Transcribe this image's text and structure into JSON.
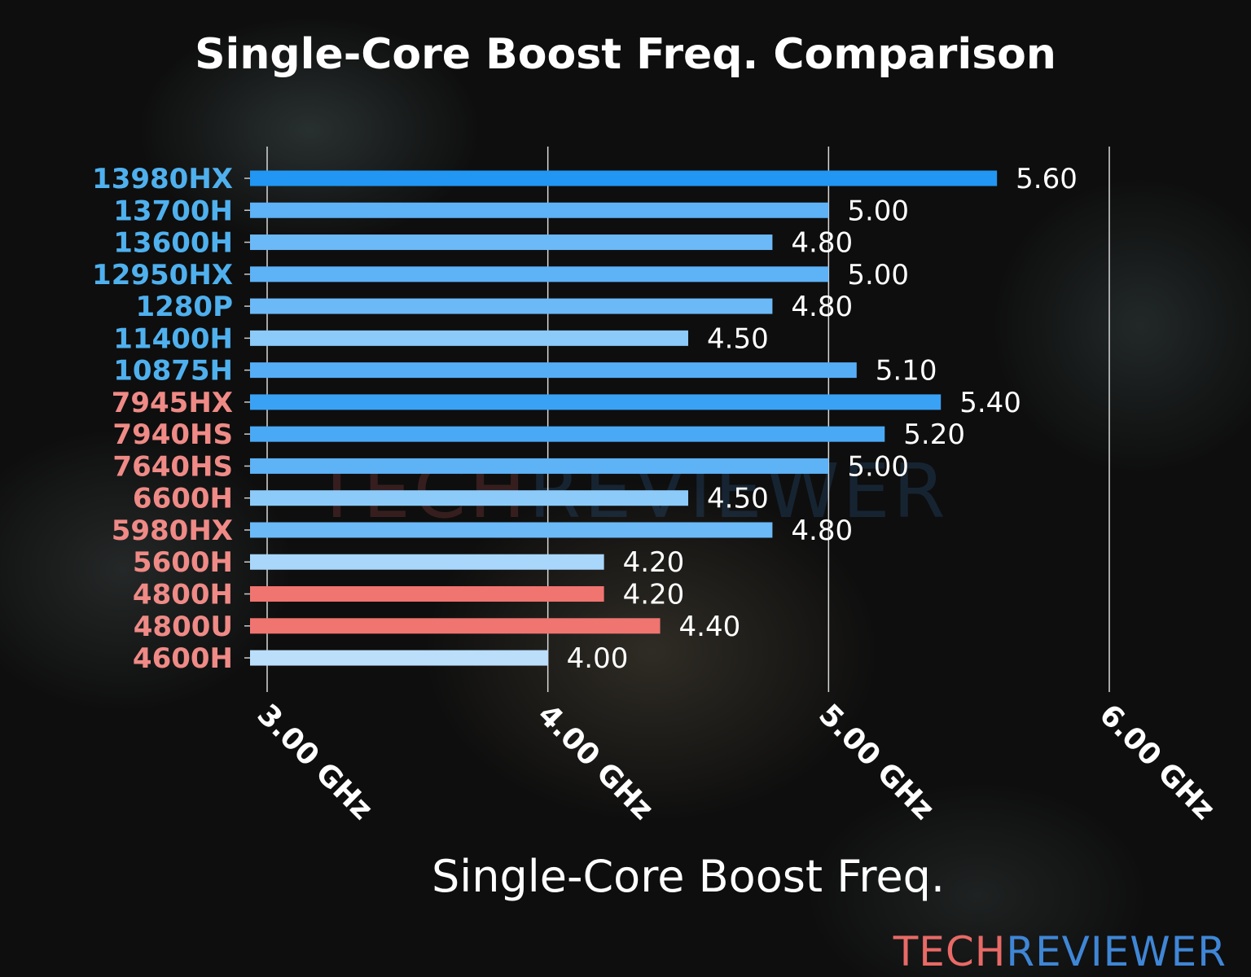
{
  "chart_data": {
    "type": "bar",
    "orientation": "horizontal",
    "title": "Single-Core Boost Freq. Comparison",
    "xlabel": "Single-Core Boost Freq.",
    "ylabel": "",
    "xlim": [
      2.94,
      6.0
    ],
    "xticks": [
      3,
      4,
      5,
      6
    ],
    "xtick_labels": [
      "3.00 GHz",
      "4.00 GHz",
      "5.00 GHz",
      "6.00 GHz"
    ],
    "grid": "vertical",
    "categories": [
      "13980HX",
      "13700H",
      "13600H",
      "12950HX",
      "1280P",
      "11400H",
      "10875H",
      "7945HX",
      "7940HS",
      "7640HS",
      "6600H",
      "5980HX",
      "5600H",
      "4800H",
      "4800U",
      "4600H"
    ],
    "values": [
      5.6,
      5.0,
      4.8,
      5.0,
      4.8,
      4.5,
      5.1,
      5.4,
      5.2,
      5.0,
      4.5,
      4.8,
      4.2,
      4.2,
      4.4,
      4.0
    ],
    "value_labels": [
      "5.60",
      "5.00",
      "4.80",
      "5.00",
      "4.80",
      "4.50",
      "5.10",
      "5.40",
      "5.20",
      "5.00",
      "4.50",
      "4.80",
      "4.20",
      "4.20",
      "4.40",
      "4.00"
    ],
    "bar_colors": [
      "#2196f3",
      "#5eb2f6",
      "#6cb9f7",
      "#5eb2f6",
      "#6cb9f7",
      "#8ccaf9",
      "#55adf5",
      "#3aa2f4",
      "#4aa9f5",
      "#5eb2f6",
      "#8ccaf9",
      "#6cb9f7",
      "#a9d7fb",
      "#f07470",
      "#f07470",
      "#bbdefb"
    ],
    "label_colors": [
      "#4fb0ee",
      "#4fb0ee",
      "#4fb0ee",
      "#4fb0ee",
      "#4fb0ee",
      "#4fb0ee",
      "#4fb0ee",
      "#ef8a86",
      "#ef8a86",
      "#ef8a86",
      "#ef8a86",
      "#ef8a86",
      "#ef8a86",
      "#ef8a86",
      "#ef8a86",
      "#ef8a86"
    ]
  },
  "branding": {
    "logo_part1": "TECH",
    "logo_part2": "REVIEWER",
    "logo_color1": "#e86a66",
    "logo_color2": "#3f86d6"
  }
}
